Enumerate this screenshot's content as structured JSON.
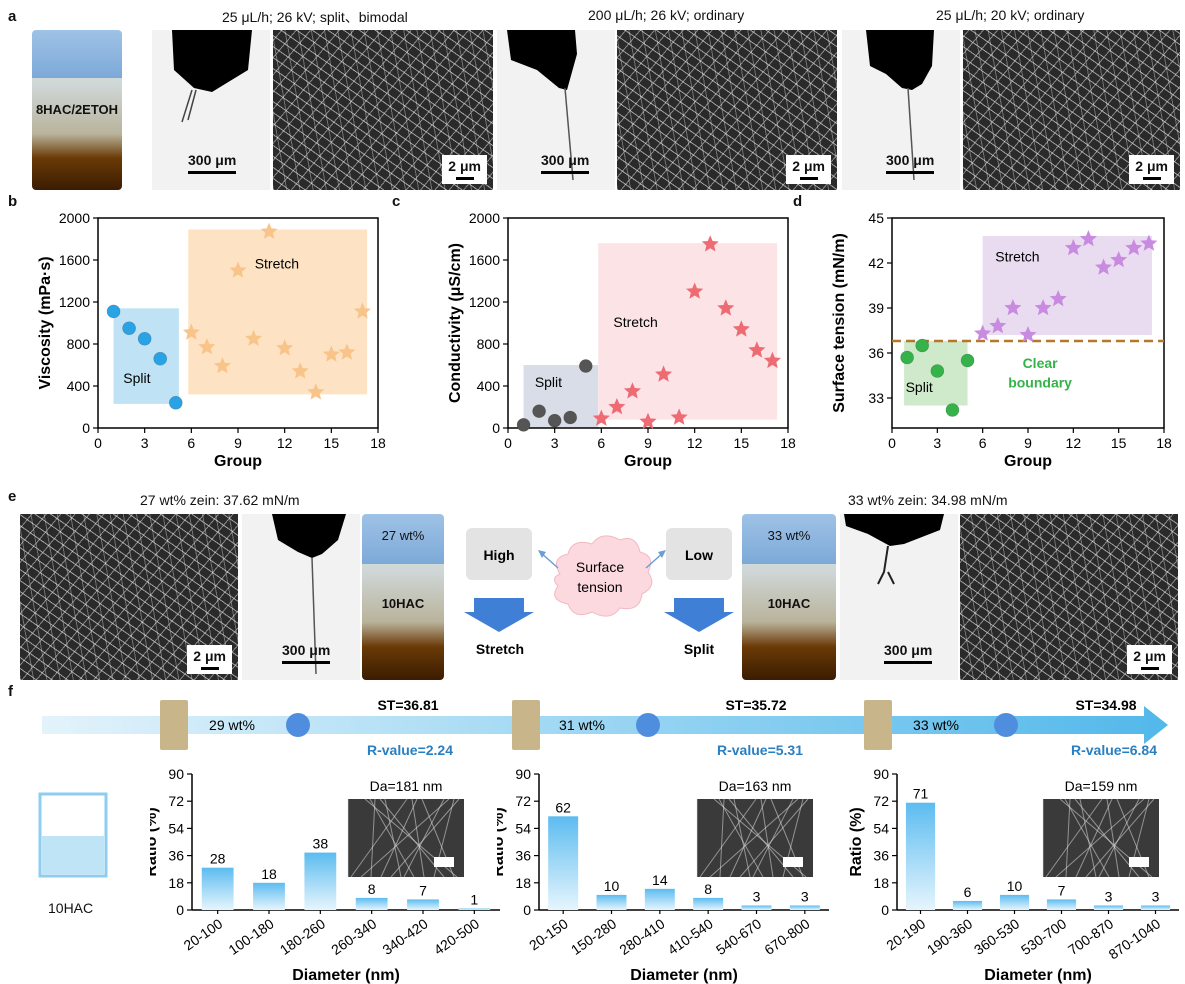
{
  "panel_letters": {
    "a": "a",
    "b": "b",
    "c": "c",
    "d": "d",
    "e": "e",
    "f": "f"
  },
  "panel_a": {
    "vial_label": "8HAC/2ETOH",
    "conditions": [
      "25 μL/h; 26 kV; split、bimodal",
      "200 μL/h; 26 kV; ordinary",
      "25 μL/h; 20 kV; ordinary"
    ],
    "cone_scale": "300 μm",
    "sem_scale": "2 μm"
  },
  "panel_e": {
    "left_caption": "27 wt% zein: 37.62 mN/m",
    "right_caption": "33 wt% zein: 34.98 mN/m",
    "left_vial_top": "27 wt%",
    "right_vial_top": "33 wt%",
    "vial_bottom": "10HAC",
    "high": "High",
    "low": "Low",
    "cloud_line1": "Surface",
    "cloud_line2": "tension",
    "stretch": "Stretch",
    "split": "Split",
    "cone_scale": "300 μm",
    "sem_scale": "2 μm"
  },
  "panel_f": {
    "vial_label": "10HAC",
    "stages": [
      {
        "wt": "29 wt%",
        "st": "ST=36.81",
        "r": "R-value=2.24"
      },
      {
        "wt": "31 wt%",
        "st": "ST=35.72",
        "r": "R-value=5.31"
      },
      {
        "wt": "33 wt%",
        "st": "ST=34.98",
        "r": "R-value=6.84"
      }
    ]
  },
  "colors": {
    "blue_dot": "#2aa3e6",
    "orange_star": "#f8c48a",
    "red_star": "#ef6b73",
    "purple_star": "#c98be0",
    "green_dot": "#35b24a",
    "gray_dot": "#555555",
    "brown_dash": "#b5772a",
    "rvalue_blue": "#2a7fc1"
  },
  "chart_data": [
    {
      "type": "scatter",
      "id": "b",
      "title": "",
      "xlabel": "Group",
      "ylabel": "Viscosity (mPa·s)",
      "xlim": [
        0,
        18
      ],
      "ylim": [
        0,
        2000
      ],
      "xticks": [
        "0",
        "3",
        "6",
        "9",
        "12",
        "15",
        "18"
      ],
      "yticks": [
        "0",
        "400",
        "800",
        "1200",
        "1600",
        "2000"
      ],
      "series": [
        {
          "name": "Split",
          "marker": "circle",
          "x": [
            1,
            2,
            3,
            4,
            5
          ],
          "y": [
            1110,
            950,
            850,
            660,
            240
          ]
        },
        {
          "name": "Stretch",
          "marker": "star",
          "x": [
            6,
            7,
            8,
            9,
            10,
            11,
            12,
            13,
            14,
            15,
            16,
            17
          ],
          "y": [
            910,
            770,
            590,
            1500,
            850,
            1870,
            760,
            540,
            340,
            700,
            720,
            1110
          ]
        }
      ],
      "region_labels": [
        "Split",
        "Stretch"
      ],
      "regions": [
        {
          "label": "Split",
          "x": [
            1,
            5.2
          ],
          "y": [
            230,
            1140
          ],
          "color": "#bfe3f5"
        },
        {
          "label": "Stretch",
          "x": [
            5.8,
            17.3
          ],
          "y": [
            320,
            1890
          ],
          "color": "#fde3c4"
        }
      ]
    },
    {
      "type": "scatter",
      "id": "c",
      "title": "",
      "xlabel": "Group",
      "ylabel": "Conductivity (μS/cm)",
      "xlim": [
        0,
        18
      ],
      "ylim": [
        0,
        2000
      ],
      "xticks": [
        "0",
        "3",
        "6",
        "9",
        "12",
        "15",
        "18"
      ],
      "yticks": [
        "0",
        "400",
        "800",
        "1200",
        "1600",
        "2000"
      ],
      "series": [
        {
          "name": "Split",
          "marker": "circle",
          "x": [
            1,
            2,
            3,
            4,
            5
          ],
          "y": [
            30,
            160,
            70,
            100,
            590
          ]
        },
        {
          "name": "Stretch",
          "marker": "star",
          "x": [
            6,
            7,
            8,
            9,
            10,
            11,
            12,
            13,
            14,
            15,
            16,
            17
          ],
          "y": [
            90,
            200,
            350,
            60,
            510,
            100,
            1300,
            1750,
            1140,
            940,
            740,
            640
          ]
        }
      ],
      "region_labels": [
        "Split",
        "Stretch"
      ],
      "regions": [
        {
          "label": "Split",
          "x": [
            1,
            5.8
          ],
          "y": [
            0,
            600
          ],
          "color": "#d9dde8"
        },
        {
          "label": "Stretch",
          "x": [
            5.8,
            17.3
          ],
          "y": [
            80,
            1760
          ],
          "color": "#fbe3e6"
        }
      ]
    },
    {
      "type": "scatter",
      "id": "d",
      "title": "",
      "xlabel": "Group",
      "ylabel": "Surface tension (mN/m)",
      "xlim": [
        0,
        18
      ],
      "ylim": [
        31,
        45
      ],
      "xticks": [
        "0",
        "3",
        "6",
        "9",
        "12",
        "15",
        "18"
      ],
      "yticks": [
        "33",
        "36",
        "39",
        "42",
        "45"
      ],
      "series": [
        {
          "name": "Split",
          "marker": "circle",
          "x": [
            1,
            2,
            3,
            4,
            5
          ],
          "y": [
            35.7,
            36.5,
            34.8,
            32.2,
            35.5
          ]
        },
        {
          "name": "Stretch",
          "marker": "star",
          "x": [
            6,
            7,
            8,
            9,
            10,
            11,
            12,
            13,
            14,
            15,
            16,
            17
          ],
          "y": [
            37.3,
            37.8,
            39.0,
            37.2,
            39.0,
            39.6,
            43.0,
            43.6,
            41.7,
            42.2,
            43.0,
            43.3
          ]
        }
      ],
      "threshold": 36.8,
      "region_labels": [
        "Split",
        "Stretch"
      ],
      "annotation": [
        "Clear",
        "boundary"
      ],
      "regions": [
        {
          "label": "Split",
          "x": [
            0.8,
            5
          ],
          "y": [
            32.5,
            36.8
          ],
          "color": "#cfeacb"
        },
        {
          "label": "Stretch",
          "x": [
            6,
            17.2
          ],
          "y": [
            37.2,
            43.8
          ],
          "color": "#e9dcf1"
        }
      ]
    },
    {
      "type": "bar",
      "id": "f1",
      "xlabel": "Diameter (nm)",
      "ylabel": "Ratio (%)",
      "ylim": [
        0,
        90
      ],
      "yticks": [
        "0",
        "18",
        "36",
        "54",
        "72",
        "90"
      ],
      "categories": [
        "20-100",
        "100-180",
        "180-260",
        "260-340",
        "340-420",
        "420-500"
      ],
      "values": [
        28,
        18,
        38,
        8,
        7,
        1
      ],
      "annotation": "Da=181 nm"
    },
    {
      "type": "bar",
      "id": "f2",
      "xlabel": "Diameter (nm)",
      "ylabel": "Ratio (%)",
      "ylim": [
        0,
        90
      ],
      "yticks": [
        "0",
        "18",
        "36",
        "54",
        "72",
        "90"
      ],
      "categories": [
        "20-150",
        "150-280",
        "280-410",
        "410-540",
        "540-670",
        "670-800"
      ],
      "values": [
        62,
        10,
        14,
        8,
        3,
        3
      ],
      "annotation": "Da=163 nm"
    },
    {
      "type": "bar",
      "id": "f3",
      "xlabel": "Diameter (nm)",
      "ylabel": "Ratio (%)",
      "ylim": [
        0,
        90
      ],
      "yticks": [
        "0",
        "18",
        "36",
        "54",
        "72",
        "90"
      ],
      "categories": [
        "20-190",
        "190-360",
        "360-530",
        "530-700",
        "700-870",
        "870-1040"
      ],
      "values": [
        71,
        6,
        10,
        7,
        3,
        3
      ],
      "annotation": "Da=159 nm"
    }
  ]
}
